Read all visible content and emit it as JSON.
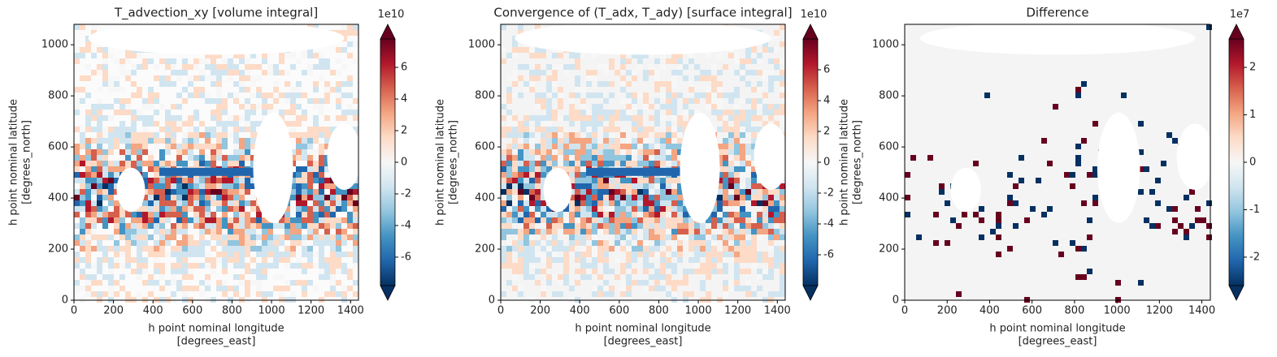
{
  "chart_data": [
    {
      "type": "heatmap",
      "title": "T_advection_xy [volume integral]",
      "xlabel": [
        "h point nominal longitude",
        "[degrees_east]"
      ],
      "ylabel": [
        "h point nominal latitude",
        "[degrees_north]"
      ],
      "xlim": [
        0,
        1440
      ],
      "ylim": [
        0,
        1080
      ],
      "xticks": [
        0,
        200,
        400,
        600,
        800,
        1000,
        1200,
        1400
      ],
      "yticks": [
        0,
        200,
        400,
        600,
        800,
        1000
      ],
      "colorbar": {
        "clim": [
          -7.8,
          7.8
        ],
        "ticks": [
          -6,
          -4,
          -2,
          0,
          2,
          4,
          6
        ],
        "offset_label": "1e10"
      },
      "cmap": [
        "#053061",
        "#2166ac",
        "#4393c3",
        "#92c5de",
        "#d1e5f0",
        "#f7f7f7",
        "#fddbc7",
        "#f4a582",
        "#d6604d",
        "#b2182b",
        "#67001f"
      ]
    },
    {
      "type": "heatmap",
      "title": "Convergence of (T_adx, T_ady) [surface integral]",
      "xlabel": [
        "h point nominal longitude",
        "[degrees_east]"
      ],
      "ylabel": [
        "h point nominal latitude",
        "[degrees_north]"
      ],
      "xlim": [
        0,
        1440
      ],
      "ylim": [
        0,
        1080
      ],
      "xticks": [
        0,
        200,
        400,
        600,
        800,
        1000,
        1200,
        1400
      ],
      "yticks": [
        0,
        200,
        400,
        600,
        800,
        1000
      ],
      "colorbar": {
        "clim": [
          -8,
          8
        ],
        "ticks": [
          -6,
          -4,
          -2,
          0,
          2,
          4,
          6
        ],
        "offset_label": "1e10"
      },
      "cmap": [
        "#053061",
        "#2166ac",
        "#4393c3",
        "#92c5de",
        "#d1e5f0",
        "#f7f7f7",
        "#fddbc7",
        "#f4a582",
        "#d6604d",
        "#b2182b",
        "#67001f"
      ]
    },
    {
      "type": "heatmap",
      "title": "Difference",
      "xlabel": [
        "h point nominal longitude",
        "[degrees_east]"
      ],
      "ylabel": [
        "h point nominal latitude",
        "[degrees_north]"
      ],
      "xlim": [
        0,
        1440
      ],
      "ylim": [
        0,
        1080
      ],
      "xticks": [
        0,
        200,
        400,
        600,
        800,
        1000,
        1200,
        1400
      ],
      "yticks": [
        0,
        200,
        400,
        600,
        800,
        1000
      ],
      "colorbar": {
        "clim": [
          -2.6,
          2.6
        ],
        "ticks": [
          -2,
          -1,
          0,
          1,
          2
        ],
        "offset_label": "1e7"
      },
      "cmap": [
        "#053061",
        "#2166ac",
        "#4393c3",
        "#92c5de",
        "#d1e5f0",
        "#f7f7f7",
        "#fddbc7",
        "#f4a582",
        "#d6604d",
        "#b2182b",
        "#67001f"
      ]
    }
  ]
}
